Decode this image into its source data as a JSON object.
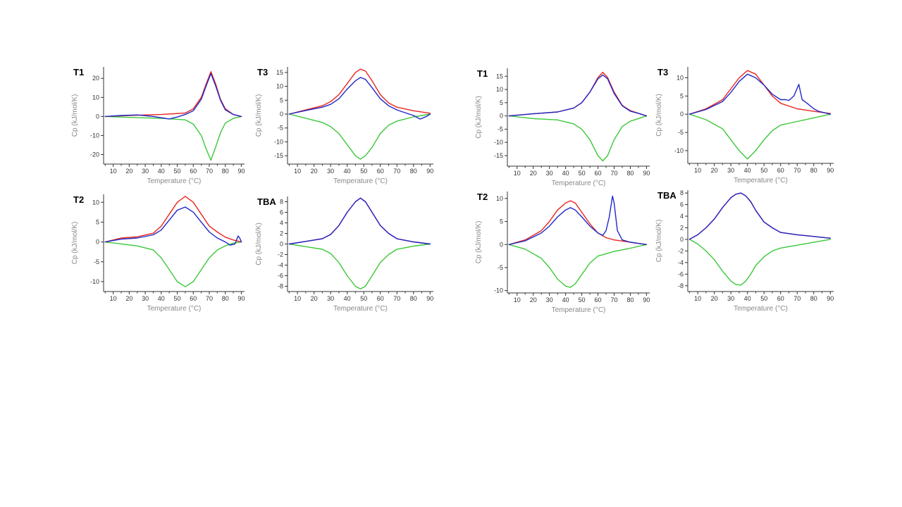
{
  "colors": {
    "red": "#e8261f",
    "blue": "#2027c8",
    "green": "#3cc83a"
  },
  "chart_data": [
    {
      "id": "L-T1",
      "type": "line",
      "panel_label": "T1",
      "xlabel": "Temperature (°C)",
      "ylabel": "Cp (kJ/mol/K)",
      "xlim": [
        4,
        92
      ],
      "ylim": [
        -25,
        26
      ],
      "xticks": [
        10,
        20,
        30,
        40,
        50,
        60,
        70,
        80,
        90
      ],
      "yticks": [
        -20,
        -10,
        0,
        10,
        20
      ],
      "series": [
        {
          "color": "red",
          "x": [
            5,
            20,
            40,
            55,
            60,
            65,
            68,
            71,
            74,
            77,
            80,
            85,
            90
          ],
          "y": [
            0,
            0.5,
            1,
            1.8,
            4,
            10,
            17,
            23.5,
            17,
            9,
            4,
            1,
            0
          ]
        },
        {
          "color": "blue",
          "x": [
            5,
            15,
            25,
            35,
            45,
            50,
            55,
            60,
            65,
            68,
            71,
            74,
            77,
            80,
            85,
            90
          ],
          "y": [
            0,
            0.5,
            0.8,
            0,
            -1.3,
            -0.3,
            1,
            3,
            9,
            16,
            22.5,
            16,
            8.5,
            3.5,
            1,
            0
          ]
        },
        {
          "color": "green",
          "x": [
            5,
            20,
            40,
            55,
            60,
            65,
            68,
            71,
            74,
            77,
            80,
            85,
            90
          ],
          "y": [
            0,
            -0.5,
            -1,
            -1.8,
            -4,
            -10,
            -17,
            -23,
            -16,
            -8.5,
            -3.5,
            -1,
            0
          ]
        }
      ]
    },
    {
      "id": "L-T3",
      "type": "line",
      "panel_label": "T3",
      "xlabel": "Temperature (°C)",
      "ylabel": "Cp (kJ/mol/K)",
      "xlim": [
        4,
        92
      ],
      "ylim": [
        -18,
        17
      ],
      "xticks": [
        10,
        20,
        30,
        40,
        50,
        60,
        70,
        80,
        90
      ],
      "yticks": [
        -15,
        -10,
        -5,
        0,
        5,
        10,
        15
      ],
      "series": [
        {
          "color": "red",
          "x": [
            5,
            15,
            25,
            30,
            35,
            40,
            45,
            48,
            51,
            55,
            60,
            65,
            70,
            80,
            90
          ],
          "y": [
            0,
            1.5,
            3,
            4.5,
            7,
            11,
            15,
            16.2,
            15.5,
            12,
            7,
            4,
            2.5,
            1.2,
            0.3
          ]
        },
        {
          "color": "blue",
          "x": [
            5,
            15,
            25,
            30,
            35,
            40,
            45,
            48,
            51,
            55,
            60,
            65,
            70,
            75,
            80,
            84,
            88,
            90
          ],
          "y": [
            0,
            1.3,
            2.5,
            3.5,
            5.5,
            9,
            12,
            13.2,
            12.5,
            9.5,
            5.5,
            3,
            1.5,
            0.5,
            -0.5,
            -1.8,
            -0.8,
            0
          ]
        },
        {
          "color": "green",
          "x": [
            5,
            15,
            25,
            30,
            35,
            40,
            45,
            48,
            51,
            55,
            60,
            65,
            70,
            80,
            90
          ],
          "y": [
            0,
            -1.5,
            -3,
            -4.5,
            -7,
            -11,
            -15,
            -16.2,
            -15,
            -12,
            -7,
            -4,
            -2.5,
            -1,
            0
          ]
        }
      ]
    },
    {
      "id": "L-T2",
      "type": "line",
      "panel_label": "T2",
      "xlabel": "Temperature (°C)",
      "ylabel": "Cp (kJ/mol/K)",
      "xlim": [
        4,
        92
      ],
      "ylim": [
        -12.5,
        12
      ],
      "xticks": [
        10,
        20,
        30,
        40,
        50,
        60,
        70,
        80,
        90
      ],
      "yticks": [
        -10,
        -5,
        0,
        5,
        10
      ],
      "series": [
        {
          "color": "red",
          "x": [
            5,
            15,
            25,
            35,
            40,
            45,
            50,
            55,
            60,
            65,
            70,
            75,
            80,
            85,
            90
          ],
          "y": [
            0,
            1,
            1.3,
            2.2,
            4,
            7,
            10,
            11.5,
            10,
            7,
            4,
            2.5,
            1.2,
            0.5,
            0
          ]
        },
        {
          "color": "blue",
          "x": [
            5,
            15,
            25,
            35,
            40,
            45,
            50,
            55,
            60,
            65,
            70,
            75,
            80,
            83,
            86,
            88,
            89,
            90
          ],
          "y": [
            0,
            0.7,
            1,
            1.8,
            3,
            5.5,
            8,
            8.8,
            7.5,
            5,
            2.5,
            1,
            0,
            -0.8,
            -0.5,
            1.5,
            1,
            0
          ]
        },
        {
          "color": "green",
          "x": [
            5,
            15,
            25,
            35,
            40,
            45,
            50,
            55,
            60,
            65,
            70,
            75,
            80,
            85,
            90
          ],
          "y": [
            0,
            -0.5,
            -1,
            -2,
            -4,
            -7,
            -10,
            -11.3,
            -10,
            -7,
            -4,
            -2,
            -1,
            -0.3,
            0
          ]
        }
      ]
    },
    {
      "id": "L-TBA",
      "type": "line",
      "panel_label": "TBA",
      "xlabel": "Temperature (°C)",
      "ylabel": "Cp (kJ/mol/K)",
      "xlim": [
        4,
        92
      ],
      "ylim": [
        -9,
        9
      ],
      "xticks": [
        10,
        20,
        30,
        40,
        50,
        60,
        70,
        80,
        90
      ],
      "yticks": [
        -8,
        -6,
        -4,
        -2,
        0,
        2,
        4,
        6,
        8
      ],
      "series": [
        {
          "color": "red",
          "x": [
            5,
            15,
            25,
            30,
            35,
            40,
            45,
            48,
            51,
            55,
            60,
            65,
            70,
            80,
            90
          ],
          "y": [
            0,
            0.5,
            1,
            1.8,
            3.5,
            6,
            8,
            8.7,
            8,
            6,
            3.5,
            2,
            1,
            0.4,
            0
          ]
        },
        {
          "color": "blue",
          "x": [
            5,
            15,
            25,
            30,
            35,
            40,
            45,
            48,
            51,
            55,
            60,
            65,
            70,
            80,
            90
          ],
          "y": [
            0,
            0.5,
            1,
            1.8,
            3.5,
            6,
            8,
            8.7,
            8,
            6,
            3.5,
            2,
            1,
            0.4,
            0
          ]
        },
        {
          "color": "green",
          "x": [
            5,
            15,
            25,
            30,
            35,
            40,
            45,
            48,
            51,
            55,
            60,
            65,
            70,
            80,
            90
          ],
          "y": [
            0,
            -0.5,
            -1,
            -1.8,
            -3.5,
            -6,
            -8,
            -8.5,
            -8,
            -6,
            -3.5,
            -2,
            -1,
            -0.4,
            0
          ]
        }
      ]
    },
    {
      "id": "R-T1",
      "type": "line",
      "panel_label": "T1",
      "xlabel": "Temperature (°C)",
      "ylabel": "Cp (kJ/mol/K)",
      "xlim": [
        4,
        92
      ],
      "ylim": [
        -19,
        18
      ],
      "xticks": [
        10,
        20,
        30,
        40,
        50,
        60,
        70,
        80,
        90
      ],
      "yticks": [
        -15,
        -10,
        -5,
        0,
        5,
        10,
        15
      ],
      "series": [
        {
          "color": "red",
          "x": [
            5,
            20,
            35,
            45,
            50,
            55,
            60,
            63,
            66,
            70,
            75,
            80,
            85,
            90
          ],
          "y": [
            0,
            0.8,
            1.5,
            3,
            5,
            9,
            14.5,
            16.5,
            14.5,
            9,
            4,
            2,
            1,
            0
          ]
        },
        {
          "color": "blue",
          "x": [
            5,
            20,
            35,
            45,
            50,
            55,
            60,
            63,
            66,
            70,
            75,
            80,
            85,
            90
          ],
          "y": [
            0,
            0.8,
            1.5,
            3,
            5,
            9,
            14,
            15.5,
            14,
            8.5,
            3.8,
            1.8,
            1,
            0
          ]
        },
        {
          "color": "green",
          "x": [
            5,
            20,
            35,
            45,
            50,
            55,
            60,
            63,
            66,
            70,
            75,
            80,
            85,
            90
          ],
          "y": [
            0,
            -1,
            -1.5,
            -3,
            -5,
            -9,
            -15,
            -17,
            -15,
            -9,
            -4,
            -2,
            -1,
            0
          ]
        }
      ]
    },
    {
      "id": "R-T3",
      "type": "line",
      "panel_label": "T3",
      "xlabel": "Temperature (°C)",
      "ylabel": "Cp (kJ/mol/K)",
      "xlim": [
        4,
        92
      ],
      "ylim": [
        -13.5,
        13
      ],
      "xticks": [
        10,
        20,
        30,
        40,
        50,
        60,
        70,
        80,
        90
      ],
      "yticks": [
        -10,
        -5,
        0,
        5,
        10
      ],
      "series": [
        {
          "color": "red",
          "x": [
            5,
            15,
            25,
            30,
            35,
            40,
            45,
            50,
            55,
            60,
            70,
            80,
            90
          ],
          "y": [
            0,
            1.5,
            4,
            7,
            10,
            12,
            11,
            8,
            5,
            3,
            1.5,
            0.8,
            0.2
          ]
        },
        {
          "color": "blue",
          "x": [
            5,
            15,
            25,
            30,
            35,
            40,
            45,
            50,
            55,
            60,
            63,
            65,
            68,
            71,
            73,
            76,
            80,
            83,
            90
          ],
          "y": [
            0,
            1.3,
            3.5,
            6,
            9,
            11,
            10,
            8,
            5.5,
            4,
            4,
            3.8,
            5,
            8.2,
            4,
            3,
            1.5,
            0.8,
            0
          ]
        },
        {
          "color": "green",
          "x": [
            5,
            15,
            25,
            30,
            35,
            40,
            45,
            50,
            55,
            60,
            70,
            80,
            90
          ],
          "y": [
            0,
            -1.5,
            -4,
            -7,
            -10,
            -12.3,
            -10,
            -7,
            -4.5,
            -3,
            -2,
            -1,
            0
          ]
        }
      ]
    },
    {
      "id": "R-T2",
      "type": "line",
      "panel_label": "T2",
      "xlabel": "Temperature (°C)",
      "ylabel": "Cp (kJ/mol/K)",
      "xlim": [
        4,
        92
      ],
      "ylim": [
        -10.5,
        11.5
      ],
      "xticks": [
        10,
        20,
        30,
        40,
        50,
        60,
        70,
        80,
        90
      ],
      "yticks": [
        -10,
        -5,
        0,
        5,
        10
      ],
      "series": [
        {
          "color": "red",
          "x": [
            5,
            15,
            25,
            30,
            35,
            40,
            43,
            46,
            50,
            55,
            60,
            65,
            70,
            80,
            90
          ],
          "y": [
            0,
            1,
            3,
            5,
            7.5,
            9,
            9.5,
            9,
            7,
            4.5,
            2.5,
            1.5,
            1,
            0.5,
            0
          ]
        },
        {
          "color": "blue",
          "x": [
            5,
            15,
            25,
            30,
            35,
            40,
            43,
            46,
            50,
            55,
            60,
            63,
            65,
            67,
            69,
            70,
            72,
            75,
            80,
            90
          ],
          "y": [
            0,
            0.8,
            2.5,
            4,
            6,
            7.5,
            8,
            7.5,
            6,
            4,
            2.5,
            2,
            3,
            6,
            10.5,
            9,
            3,
            1,
            0.5,
            0
          ]
        },
        {
          "color": "green",
          "x": [
            5,
            15,
            25,
            30,
            35,
            40,
            43,
            46,
            50,
            55,
            60,
            65,
            70,
            80,
            90
          ],
          "y": [
            0,
            -1,
            -3,
            -5,
            -7.5,
            -9,
            -9.3,
            -8.5,
            -6.5,
            -4,
            -2.5,
            -2,
            -1.5,
            -0.8,
            0
          ]
        }
      ]
    },
    {
      "id": "R-TBA",
      "type": "line",
      "panel_label": "TBA",
      "xlabel": "Temperature (°C)",
      "ylabel": "Cp (kJ/mol/K)",
      "xlim": [
        4,
        92
      ],
      "ylim": [
        -9,
        8.5
      ],
      "xticks": [
        10,
        20,
        30,
        40,
        50,
        60,
        70,
        80,
        90
      ],
      "yticks": [
        -8,
        -6,
        -4,
        -2,
        0,
        2,
        4,
        6,
        8
      ],
      "series": [
        {
          "color": "red",
          "x": [
            5,
            10,
            15,
            20,
            25,
            30,
            33,
            36,
            39,
            42,
            45,
            50,
            55,
            60,
            70,
            80,
            90
          ],
          "y": [
            0,
            0.8,
            2,
            3.5,
            5.5,
            7.2,
            7.8,
            8,
            7.5,
            6.5,
            5,
            3,
            2,
            1.2,
            0.8,
            0.5,
            0.2
          ]
        },
        {
          "color": "blue",
          "x": [
            5,
            10,
            15,
            20,
            25,
            30,
            33,
            36,
            39,
            42,
            45,
            50,
            55,
            60,
            70,
            80,
            90
          ],
          "y": [
            0,
            0.8,
            2,
            3.5,
            5.5,
            7.2,
            7.8,
            8,
            7.5,
            6.5,
            5,
            3,
            2,
            1.2,
            0.8,
            0.5,
            0.2
          ]
        },
        {
          "color": "green",
          "x": [
            5,
            10,
            15,
            20,
            25,
            30,
            33,
            36,
            39,
            42,
            45,
            50,
            55,
            60,
            70,
            80,
            90
          ],
          "y": [
            0,
            -0.8,
            -2,
            -3.5,
            -5.5,
            -7.2,
            -7.8,
            -7.9,
            -7.2,
            -6,
            -4.5,
            -3,
            -2,
            -1.5,
            -1,
            -0.5,
            0
          ]
        }
      ]
    }
  ]
}
